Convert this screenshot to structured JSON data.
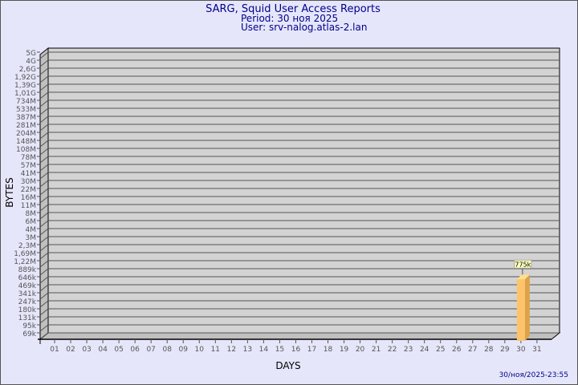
{
  "header": {
    "title": "SARG, Squid User Access Reports",
    "period": "Period: 30 ноя 2025",
    "user": "User: srv-nalog.atlas-2.lan"
  },
  "footer": {
    "timestamp": "30/ноя/2025-23:55"
  },
  "colors": {
    "background": "#e6e6fa",
    "text": "#00008b",
    "plot": "#d3d3d3",
    "bar": "#ffc46a",
    "bar_side": "#dda24a",
    "label_box": "#ffffc0"
  },
  "chart_data": {
    "type": "bar",
    "xlabel": "DAYS",
    "ylabel": "BYTES",
    "yscale": "log",
    "grid": true,
    "y_tick_labels": [
      "5G",
      "4G",
      "2,6G",
      "1,92G",
      "1,39G",
      "1,01G",
      "734M",
      "533M",
      "387M",
      "281M",
      "204M",
      "148M",
      "108M",
      "78M",
      "57M",
      "41M",
      "30M",
      "22M",
      "16M",
      "11M",
      "8M",
      "6M",
      "4M",
      "3M",
      "2,3M",
      "1,69M",
      "1,22M",
      "889k",
      "646k",
      "469k",
      "341k",
      "247k",
      "180k",
      "131k",
      "95k",
      "69k"
    ],
    "categories": [
      "01",
      "02",
      "03",
      "04",
      "05",
      "06",
      "07",
      "08",
      "09",
      "10",
      "11",
      "12",
      "13",
      "14",
      "15",
      "16",
      "17",
      "18",
      "19",
      "20",
      "21",
      "22",
      "23",
      "24",
      "25",
      "26",
      "27",
      "28",
      "29",
      "30",
      "31"
    ],
    "bars": [
      {
        "day": "30",
        "value": 775000,
        "label": "775k"
      }
    ]
  }
}
